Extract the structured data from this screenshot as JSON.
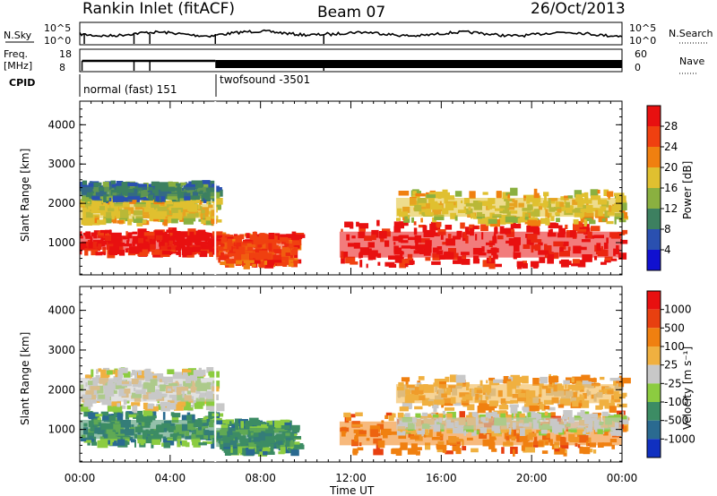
{
  "header": {
    "station": "Rankin Inlet (fitACF)",
    "beam": "Beam 07",
    "date": "26/Oct/2013"
  },
  "panels": {
    "nsky_label": "N.Sky",
    "nsky_ticks": [
      "10^5",
      "10^0"
    ],
    "nsearch_label": "N.Search",
    "freq_label_line1": "Freq.",
    "freq_label_line2": "[MHz]",
    "freq_ticks": [
      "18",
      "8"
    ],
    "nave_label": "Nave",
    "nave_ticks": [
      "60",
      "0"
    ],
    "cpid_label": "CPID",
    "cpid_modes": [
      "normal (fast) 151",
      "twofsound -3501"
    ]
  },
  "chart_data": [
    {
      "type": "heatmap",
      "name": "",
      "xlabel": "Time UT",
      "ylabel": "Slant Range [km]",
      "xticks": [
        "00:00",
        "04:00",
        "08:00",
        "12:00",
        "16:00",
        "20:00",
        "00:00"
      ],
      "xlim_hours": [
        0,
        24
      ],
      "yticks": [
        1000,
        2000,
        3000,
        4000
      ],
      "ylim": [
        180,
        4600
      ],
      "colorbar": {
        "label": "Power [dB]",
        "ticks": [
          "4",
          "8",
          "12",
          "16",
          "20",
          "24",
          "28"
        ],
        "colors": [
          "#1010d0",
          "#2a50b0",
          "#3d8060",
          "#8ab040",
          "#e0c030",
          "#f08010",
          "#f04010",
          "#e81010"
        ]
      },
      "regions": [
        {
          "t0": 0.0,
          "t1": 6.0,
          "r0": 700,
          "r1": 1300,
          "level": 7
        },
        {
          "t0": 0.0,
          "t1": 6.0,
          "r0": 1500,
          "r1": 2100,
          "level": 4
        },
        {
          "t0": 0.0,
          "t1": 6.0,
          "r0": 2100,
          "r1": 2500,
          "level": 2
        },
        {
          "t0": 6.0,
          "t1": 9.5,
          "r0": 400,
          "r1": 1200,
          "level": 6
        },
        {
          "t0": 11.5,
          "t1": 24.0,
          "r0": 400,
          "r1": 1500,
          "level": 7
        },
        {
          "t0": 14.0,
          "t1": 24.0,
          "r0": 1500,
          "r1": 2300,
          "level": 4
        }
      ]
    },
    {
      "type": "heatmap",
      "name": "",
      "xlabel": "Time UT",
      "ylabel": "Slant Range [km]",
      "xticks": [
        "00:00",
        "04:00",
        "08:00",
        "12:00",
        "16:00",
        "20:00",
        "00:00"
      ],
      "xlim_hours": [
        0,
        24
      ],
      "yticks": [
        1000,
        2000,
        3000,
        4000
      ],
      "ylim": [
        180,
        4600
      ],
      "colorbar": {
        "label": "Velocity [m s⁻¹]",
        "ticks": [
          "1000",
          "500",
          "100",
          "25",
          "-25",
          "-100",
          "-500",
          "-1000"
        ],
        "colors": [
          "#1030c0",
          "#2a6a90",
          "#3c8c64",
          "#8ccc40",
          "#c8c8c8",
          "#f0b040",
          "#f08010",
          "#e84010",
          "#e81010"
        ]
      },
      "regions": [
        {
          "t0": 0.0,
          "t1": 6.0,
          "r0": 600,
          "r1": 1400,
          "level": 2
        },
        {
          "t0": 0.0,
          "t1": 6.0,
          "r0": 1500,
          "r1": 2500,
          "level": 4
        },
        {
          "t0": 6.0,
          "t1": 9.5,
          "r0": 400,
          "r1": 1200,
          "level": 2
        },
        {
          "t0": 11.5,
          "t1": 24.0,
          "r0": 400,
          "r1": 1400,
          "level": 6
        },
        {
          "t0": 14.0,
          "t1": 24.0,
          "r0": 900,
          "r1": 1400,
          "level": 4
        },
        {
          "t0": 14.0,
          "t1": 24.0,
          "r0": 1500,
          "r1": 2300,
          "level": 5
        }
      ]
    }
  ]
}
